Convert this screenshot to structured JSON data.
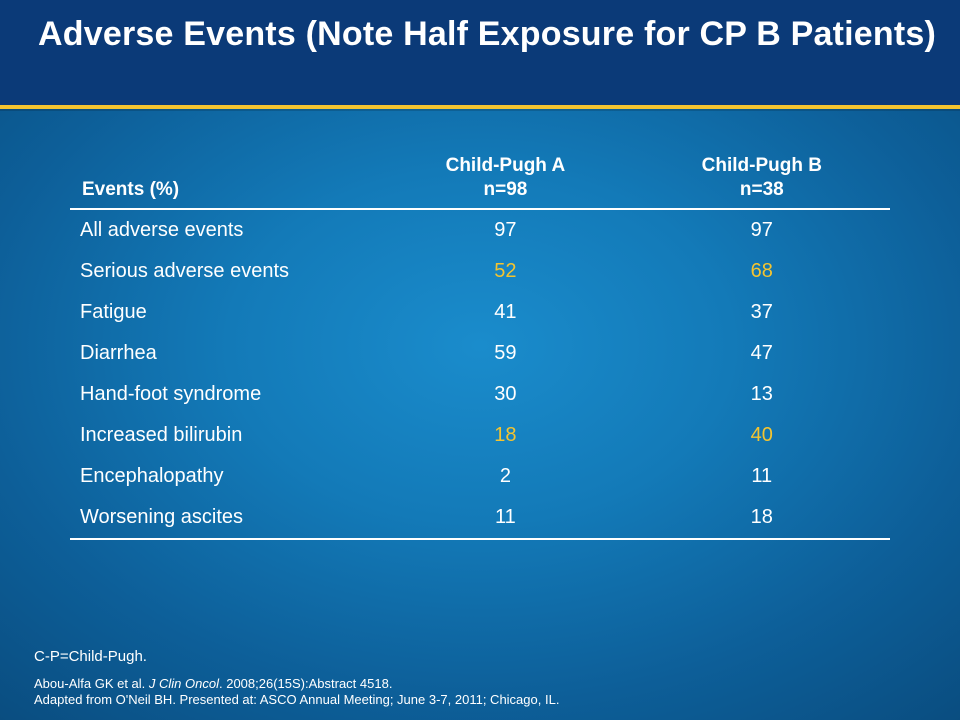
{
  "title": "Adverse Events (Note Half Exposure for CP B Patients)",
  "table": {
    "headers": [
      {
        "lines": [
          "Events (%)"
        ]
      },
      {
        "lines": [
          "Child-Pugh A",
          "n=98"
        ]
      },
      {
        "lines": [
          "Child-Pugh B",
          "n=38"
        ]
      }
    ],
    "rows": [
      {
        "event": "All adverse events",
        "cp_a": "97",
        "cp_b": "97",
        "highlight": false
      },
      {
        "event": "Serious adverse events",
        "cp_a": "52",
        "cp_b": "68",
        "highlight": true
      },
      {
        "event": "Fatigue",
        "cp_a": "41",
        "cp_b": "37",
        "highlight": false
      },
      {
        "event": "Diarrhea",
        "cp_a": "59",
        "cp_b": "47",
        "highlight": false
      },
      {
        "event": "Hand-foot syndrome",
        "cp_a": "30",
        "cp_b": "13",
        "highlight": false
      },
      {
        "event": "Increased bilirubin",
        "cp_a": "18",
        "cp_b": "40",
        "highlight": true
      },
      {
        "event": "Encephalopathy",
        "cp_a": "2",
        "cp_b": "11",
        "highlight": false
      },
      {
        "event": "Worsening ascites",
        "cp_a": "11",
        "cp_b": "18",
        "highlight": false
      }
    ]
  },
  "footnotes": {
    "abbreviation": "C-P=Child-Pugh.",
    "ref1_pre": "Abou-Alfa GK et al. ",
    "ref1_journal": "J Clin Oncol",
    "ref1_post": ". 2008;26(15S):Abstract 4518.",
    "ref2": "Adapted from O'Neil BH. Presented at: ASCO Annual Meeting; June 3-7, 2011; Chicago, IL."
  },
  "colors": {
    "header_bar": "#0b3a78",
    "accent_rule": "#f4c430",
    "highlight_text": "#f4c430",
    "background": "#137ab8"
  }
}
